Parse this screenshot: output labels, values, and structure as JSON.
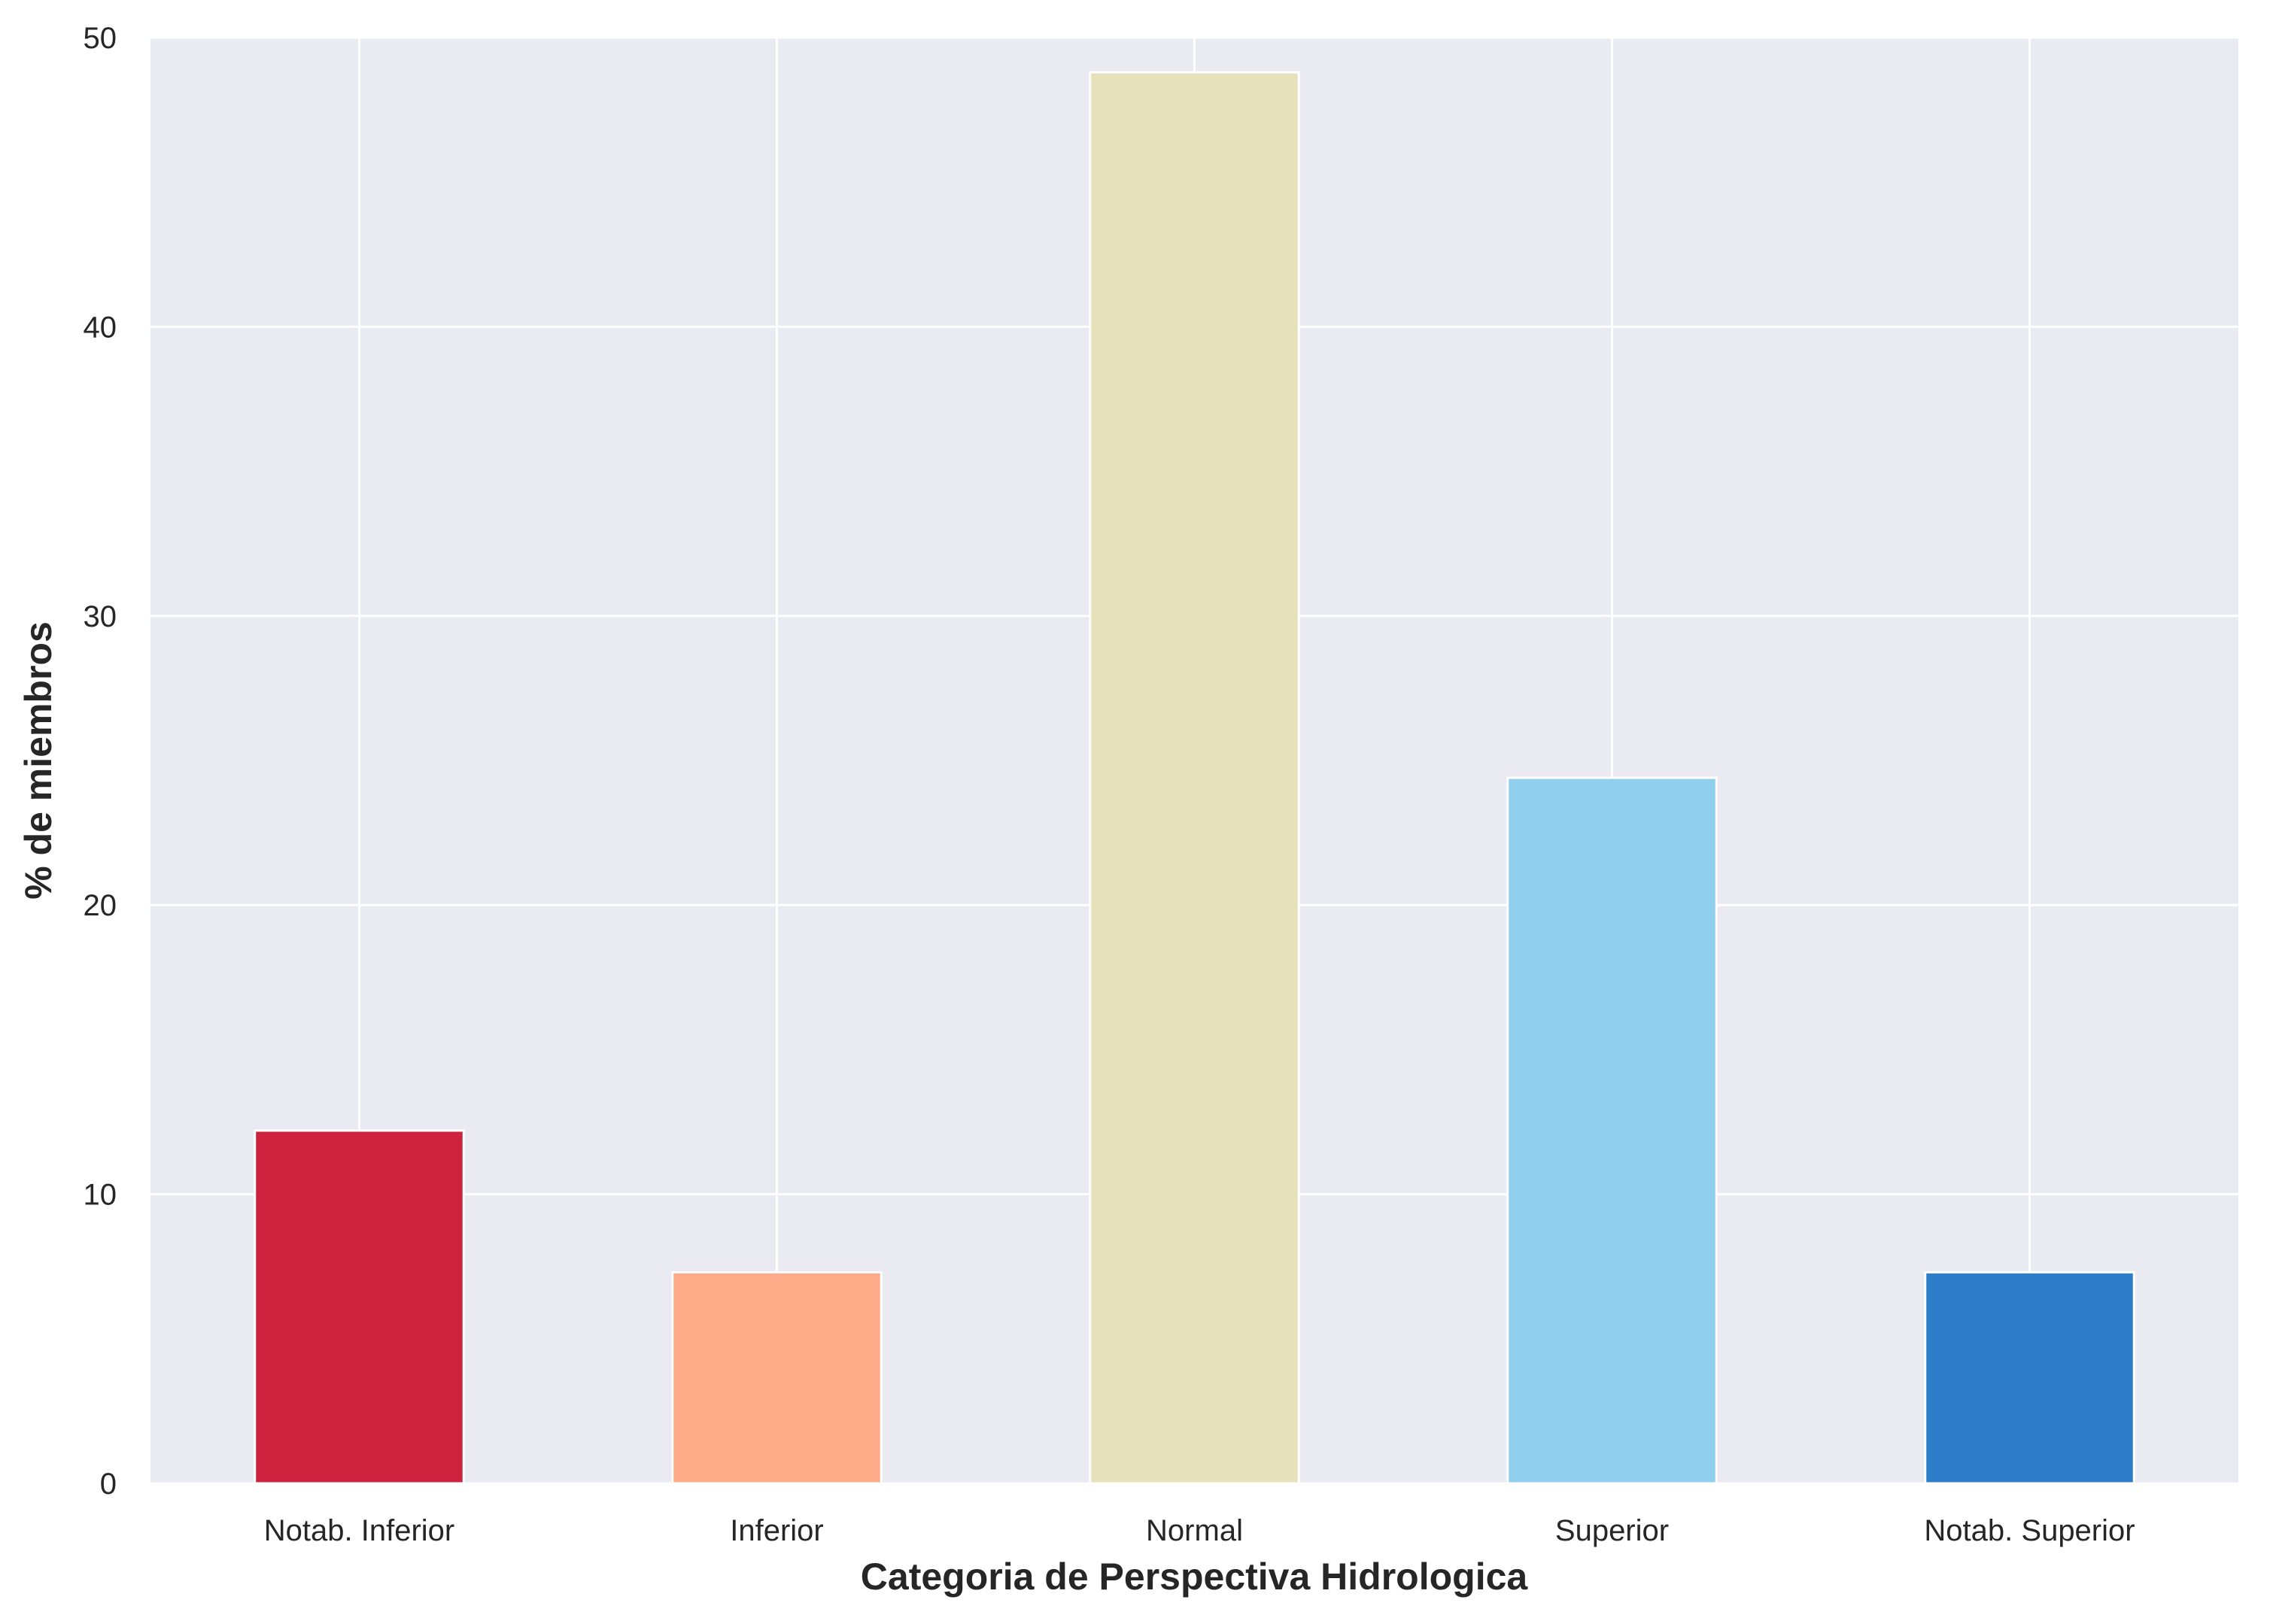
{
  "chart_data": {
    "type": "bar",
    "title": "",
    "xlabel": "Categoria de Perspectiva Hidrologica",
    "ylabel": "% de miembros",
    "categories": [
      "Notab. Inferior",
      "Inferior",
      "Normal",
      "Superior",
      "Notab. Superior"
    ],
    "values": [
      12.2,
      7.3,
      48.8,
      24.4,
      7.3
    ],
    "colors": [
      "#cc223d",
      "#fdaa89",
      "#e6e1bb",
      "#90ceee",
      "#2e7dcb"
    ],
    "ylim": [
      0,
      50
    ],
    "yticks": [
      0,
      10,
      20,
      30,
      40,
      50
    ],
    "grid": true,
    "legend": "none",
    "background_color": "#eaeaf2",
    "grid_color": "#ffffff"
  }
}
